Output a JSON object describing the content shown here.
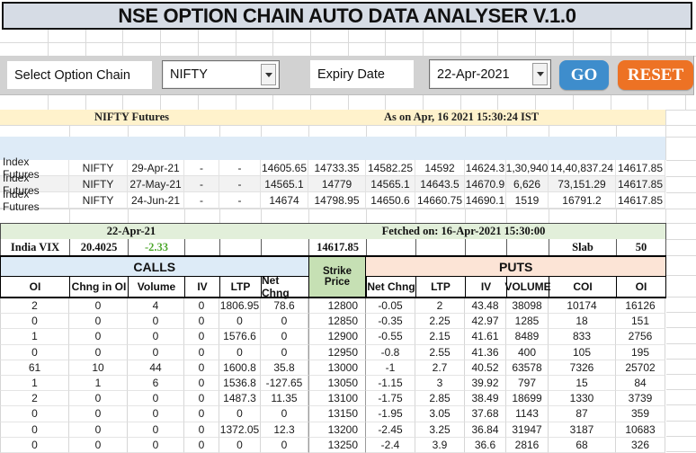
{
  "title": "NSE OPTION CHAIN AUTO DATA ANALYSER  V.1.0",
  "controls": {
    "select_label": "Select Option Chain",
    "symbol_value": "NIFTY",
    "expiry_label": "Expiry Date",
    "expiry_value": "22-Apr-2021",
    "go_label": "GO",
    "reset_label": "RESET"
  },
  "futures_banner": {
    "left": "NIFTY Futures",
    "right": "As on Apr, 16 2021 15:30:24 IST"
  },
  "futures_rows": [
    [
      "Index Futures",
      "NIFTY",
      "29-Apr-21",
      "-",
      "-",
      "14605.65",
      "14733.35",
      "14582.25",
      "14592",
      "14624.3",
      "1,30,940",
      "14,40,837.24",
      "14617.85"
    ],
    [
      "Index Futures",
      "NIFTY",
      "27-May-21",
      "-",
      "-",
      "14565.1",
      "14779",
      "14565.1",
      "14643.5",
      "14670.9",
      "6,626",
      "73,151.29",
      "14617.85"
    ],
    [
      "Index Futures",
      "NIFTY",
      "24-Jun-21",
      "-",
      "-",
      "14674",
      "14798.95",
      "14650.6",
      "14660.75",
      "14690.1",
      "1519",
      "16791.2",
      "14617.85"
    ]
  ],
  "fetch_band": {
    "left": "22-Apr-21",
    "right": "Fetched on: 16-Apr-2021 15:30:00"
  },
  "vix_row": {
    "label": "India VIX",
    "value": "20.4025",
    "change": "-2.33",
    "spot": "14617.85",
    "slab_label": "Slab",
    "slab_value": "50"
  },
  "option_chain": {
    "calls_label": "CALLS",
    "puts_label": "PUTS",
    "strike_label": "Strike Price",
    "calls_headers": [
      "OI",
      "Chng in OI",
      "Volume",
      "IV",
      "LTP",
      "Net Chng"
    ],
    "puts_headers": [
      "Net Chng",
      "LTP",
      "IV",
      "VOLUME",
      "COI",
      "OI"
    ],
    "rows": [
      {
        "calls": [
          "2",
          "0",
          "4",
          "0",
          "1806.95",
          "78.6"
        ],
        "strike": "12800",
        "puts": [
          "-0.05",
          "2",
          "43.48",
          "38098",
          "10174",
          "16126"
        ]
      },
      {
        "calls": [
          "0",
          "0",
          "0",
          "0",
          "0",
          "0"
        ],
        "strike": "12850",
        "puts": [
          "-0.35",
          "2.25",
          "42.97",
          "1285",
          "18",
          "151"
        ]
      },
      {
        "calls": [
          "1",
          "0",
          "0",
          "0",
          "1576.6",
          "0"
        ],
        "strike": "12900",
        "puts": [
          "-0.55",
          "2.15",
          "41.61",
          "8489",
          "833",
          "2756"
        ]
      },
      {
        "calls": [
          "0",
          "0",
          "0",
          "0",
          "0",
          "0"
        ],
        "strike": "12950",
        "puts": [
          "-0.8",
          "2.55",
          "41.36",
          "400",
          "105",
          "195"
        ]
      },
      {
        "calls": [
          "61",
          "10",
          "44",
          "0",
          "1600.8",
          "35.8"
        ],
        "strike": "13000",
        "puts": [
          "-1",
          "2.7",
          "40.52",
          "63578",
          "7326",
          "25702"
        ]
      },
      {
        "calls": [
          "1",
          "1",
          "6",
          "0",
          "1536.8",
          "-127.65"
        ],
        "strike": "13050",
        "puts": [
          "-1.15",
          "3",
          "39.92",
          "797",
          "15",
          "84"
        ]
      },
      {
        "calls": [
          "2",
          "0",
          "0",
          "0",
          "1487.3",
          "11.35"
        ],
        "strike": "13100",
        "puts": [
          "-1.75",
          "2.85",
          "38.49",
          "18699",
          "1330",
          "3739"
        ]
      },
      {
        "calls": [
          "0",
          "0",
          "0",
          "0",
          "0",
          "0"
        ],
        "strike": "13150",
        "puts": [
          "-1.95",
          "3.05",
          "37.68",
          "1143",
          "87",
          "359"
        ]
      },
      {
        "calls": [
          "0",
          "0",
          "0",
          "0",
          "1372.05",
          "12.3"
        ],
        "strike": "13200",
        "puts": [
          "-2.45",
          "3.25",
          "36.84",
          "31947",
          "3187",
          "10683"
        ]
      },
      {
        "calls": [
          "0",
          "0",
          "0",
          "0",
          "0",
          "0"
        ],
        "strike": "13250",
        "puts": [
          "-2.4",
          "3.9",
          "36.6",
          "2816",
          "68",
          "326"
        ]
      }
    ]
  },
  "colors": {
    "title_bg": "#D6DCE5",
    "go_blue": "#3E8DCC",
    "reset_orange": "#ED7224",
    "banner_bg": "#FFF2CC",
    "blue_band": "#DEEBF7",
    "fetch_bg": "#E2EFDA",
    "calls_bg": "#DDEBF7",
    "strike_bg": "#C6E0B4",
    "puts_bg": "#FCE4D6",
    "vix_green": "#4EA72E"
  }
}
